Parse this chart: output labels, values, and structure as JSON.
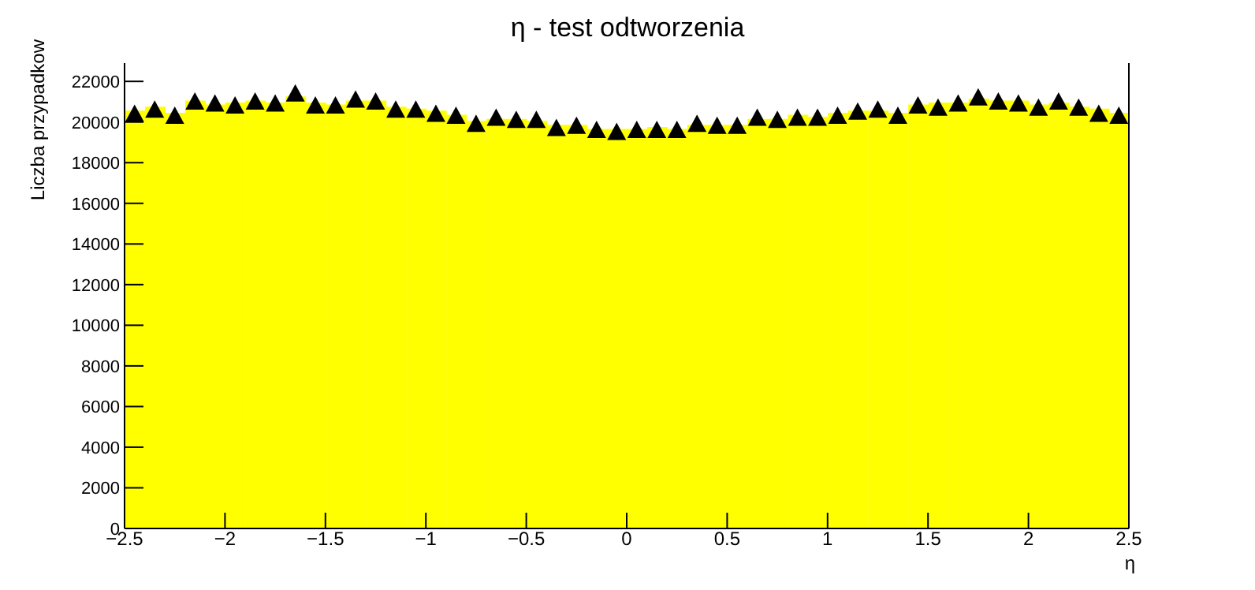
{
  "chart_data": {
    "type": "histogram",
    "title": "η - test odtworzenia",
    "xlabel": "η",
    "ylabel": "Liczba przypadkow",
    "bins": [
      -2.5,
      -2.4,
      -2.3,
      -2.2,
      -2.1,
      -2,
      -1.9,
      -1.8,
      -1.7,
      -1.6,
      -1.5,
      -1.4,
      -1.3,
      -1.2,
      -1.1,
      -1,
      -0.9,
      -0.8,
      -0.7,
      -0.6,
      -0.5,
      -0.4,
      -0.3,
      -0.2,
      -0.1,
      0,
      0.1,
      0.2,
      0.3,
      0.4,
      0.5,
      0.6,
      0.7,
      0.8,
      0.9,
      1,
      1.1,
      1.2,
      1.3,
      1.4,
      1.5,
      1.6,
      1.7,
      1.8,
      1.9,
      2,
      2.1,
      2.2,
      2.3,
      2.4,
      2.5
    ],
    "series": [
      {
        "color": "#ffff00",
        "values": [
          20500,
          20700,
          20400,
          21000,
          20800,
          20900,
          21000,
          20900,
          21200,
          20900,
          20800,
          21000,
          21000,
          20700,
          20600,
          20500,
          20300,
          20000,
          20100,
          20100,
          20000,
          19800,
          19800,
          19600,
          19600,
          19600,
          19700,
          19600,
          19800,
          19800,
          19800,
          20100,
          20100,
          20300,
          20200,
          20400,
          20500,
          20500,
          20400,
          20800,
          20900,
          20900,
          21100,
          21000,
          21000,
          20800,
          20900,
          20700,
          20600,
          20400
        ]
      },
      {
        "type": "scatter",
        "color": "#000000",
        "marker": "triangle",
        "x": [
          -2.45,
          -2.35,
          -2.25,
          -2.15,
          -2.05,
          -1.95,
          -1.85,
          -1.75,
          -1.65,
          -1.55,
          -1.45,
          -1.35,
          -1.25,
          -1.15,
          -1.05,
          -0.95,
          -0.85,
          -0.75,
          -0.65,
          -0.55,
          -0.45,
          -0.35,
          -0.25,
          -0.15,
          -0.05,
          0.05,
          0.15,
          0.25,
          0.35,
          0.45,
          0.55,
          0.65,
          0.75,
          0.85,
          0.95,
          1.05,
          1.15,
          1.25,
          1.35,
          1.45,
          1.55,
          1.65,
          1.75,
          1.85,
          1.95,
          2.05,
          2.15,
          2.25,
          2.35,
          2.45
        ],
        "values": [
          20400,
          20600,
          20300,
          21000,
          20900,
          20800,
          21000,
          20900,
          21400,
          20800,
          20800,
          21100,
          21000,
          20600,
          20600,
          20400,
          20300,
          19900,
          20200,
          20100,
          20100,
          19700,
          19800,
          19600,
          19500,
          19600,
          19600,
          19600,
          19900,
          19800,
          19800,
          20200,
          20100,
          20200,
          20200,
          20300,
          20500,
          20600,
          20300,
          20800,
          20700,
          20900,
          21200,
          21000,
          20900,
          20700,
          21000,
          20700,
          20400,
          20300
        ]
      }
    ],
    "xlim": [
      -2.5,
      2.5
    ],
    "xticks": [
      {
        "value": -2.5,
        "label": "−2.5"
      },
      {
        "value": -2,
        "label": "−2"
      },
      {
        "value": -1.5,
        "label": "−1.5"
      },
      {
        "value": -1,
        "label": "−1"
      },
      {
        "value": -0.5,
        "label": "−0.5"
      },
      0,
      0.5,
      1,
      1.5,
      2,
      2.5
    ],
    "ylim": [
      0,
      22900
    ],
    "yticks": [
      0,
      2000,
      4000,
      6000,
      8000,
      10000,
      12000,
      14000,
      16000,
      18000,
      20000,
      22000
    ],
    "grid": false,
    "legend": false
  }
}
